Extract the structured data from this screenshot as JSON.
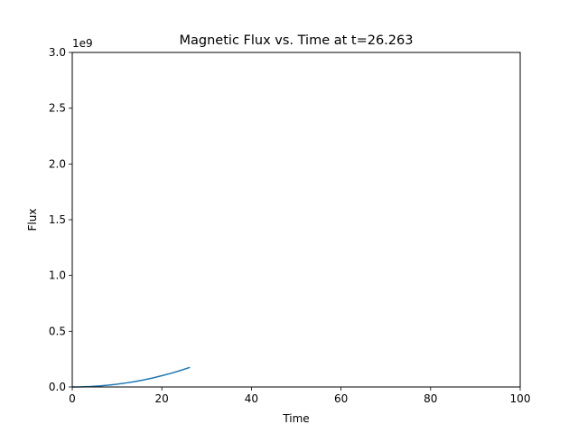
{
  "chart_data": {
    "type": "line",
    "title": "Magnetic Flux vs. Time at t=26.263",
    "xlabel": "Time",
    "ylabel": "Flux",
    "offset_label": "1e9",
    "xlim": [
      0,
      100
    ],
    "ylim": [
      0,
      3.0
    ],
    "x_ticks": [
      0,
      20,
      40,
      60,
      80,
      100
    ],
    "x_tick_labels": [
      "0",
      "20",
      "40",
      "60",
      "80",
      "100"
    ],
    "y_ticks": [
      0,
      0.5,
      1.0,
      1.5,
      2.0,
      2.5,
      3.0
    ],
    "y_tick_labels": [
      "0.0",
      "0.5",
      "1.0",
      "1.5",
      "2.0",
      "2.5",
      "3.0"
    ],
    "grid": false,
    "series": [
      {
        "color": "#1f77b4",
        "x": [
          0,
          2,
          4,
          6,
          8,
          10,
          12,
          14,
          16,
          18,
          20,
          22,
          24,
          26.263
        ],
        "y": [
          0,
          0.001,
          0.004,
          0.009,
          0.016,
          0.025,
          0.036,
          0.049,
          0.064,
          0.081,
          0.101,
          0.122,
          0.146,
          0.176
        ]
      }
    ]
  }
}
